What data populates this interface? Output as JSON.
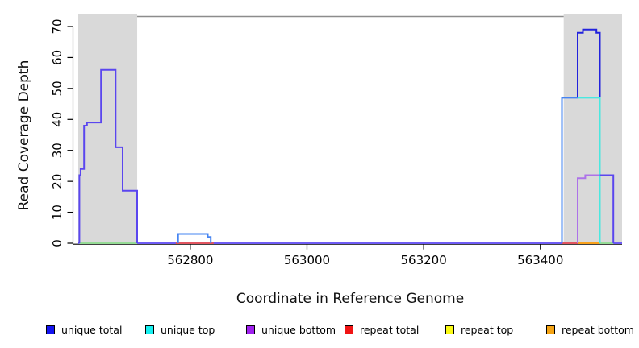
{
  "chart_data": {
    "type": "line",
    "subtype": "step-coverage",
    "title": "",
    "xlabel": "Coordinate in Reference Genome",
    "ylabel": "Read Coverage Depth",
    "xlim": [
      562608,
      563540
    ],
    "ylim": [
      0,
      74
    ],
    "x_ticks": [
      562800,
      563000,
      563200,
      563400
    ],
    "y_ticks": [
      0,
      10,
      20,
      30,
      40,
      50,
      60,
      70
    ],
    "grid": false,
    "background": "#ffffff",
    "region_fill": "#d9d9d9",
    "top_border": {
      "start": 562709,
      "end": 563440,
      "color": "#8c8c8c"
    },
    "highlight_regions": [
      {
        "name": "left-repeat-region",
        "start": 562608,
        "end": 562709
      },
      {
        "name": "right-repeat-region",
        "start": 563440,
        "end": 563540
      }
    ],
    "series": [
      {
        "name": "baseline-zero",
        "color": "#6f5cf5",
        "points": [
          [
            562608,
            0
          ],
          [
            563540,
            0
          ]
        ]
      },
      {
        "name": "zero-green-left",
        "color": "#95db95",
        "points": [
          [
            562610,
            0
          ],
          [
            562709,
            0
          ]
        ]
      },
      {
        "name": "zero-red-mid",
        "color": "#e25560",
        "points": [
          [
            562775,
            0
          ],
          [
            562840,
            0
          ]
        ]
      },
      {
        "name": "zero-red-right",
        "color": "#e25560",
        "points": [
          [
            563437,
            0
          ],
          [
            563464,
            0
          ]
        ]
      },
      {
        "name": "zero-orange-right",
        "color": "#f9a11b",
        "points": [
          [
            563464,
            0
          ],
          [
            563502,
            0
          ]
        ]
      },
      {
        "name": "zero-green-right",
        "color": "#95db95",
        "points": [
          [
            563502,
            0
          ],
          [
            563525,
            0
          ]
        ]
      },
      {
        "name": "unique-bottom-right",
        "color": "#ad72e9",
        "points": [
          [
            563464,
            0
          ],
          [
            563464,
            21
          ],
          [
            563477,
            21
          ],
          [
            563477,
            22
          ],
          [
            563525,
            22
          ]
        ]
      },
      {
        "name": "unique-total-right-peak",
        "color": "#2222dd",
        "points": [
          [
            563464,
            47
          ],
          [
            563464,
            68
          ],
          [
            563473,
            68
          ],
          [
            563473,
            69
          ],
          [
            563496,
            69
          ],
          [
            563496,
            68
          ],
          [
            563502,
            68
          ],
          [
            563502,
            22
          ]
        ]
      },
      {
        "name": "unique-top-right",
        "color": "#49e8e0",
        "points": [
          [
            563464,
            47
          ],
          [
            563502,
            47
          ],
          [
            563502,
            0
          ]
        ]
      },
      {
        "name": "mid-bump",
        "color": "#4584f2",
        "points": [
          [
            562779,
            0
          ],
          [
            562779,
            3
          ],
          [
            562830,
            3
          ],
          [
            562830,
            2
          ],
          [
            562835,
            2
          ],
          [
            562835,
            0
          ]
        ]
      },
      {
        "name": "right-rise",
        "color": "#4584f2",
        "points": [
          [
            563437,
            0
          ],
          [
            563437,
            47
          ],
          [
            563464,
            47
          ]
        ]
      },
      {
        "name": "left-peak",
        "color": "#5a46ef",
        "points": [
          [
            562610,
            0
          ],
          [
            562610,
            22
          ],
          [
            562612,
            22
          ],
          [
            562612,
            24
          ],
          [
            562618,
            24
          ],
          [
            562618,
            38
          ],
          [
            562623,
            38
          ],
          [
            562623,
            39
          ],
          [
            562647,
            39
          ],
          [
            562647,
            56
          ],
          [
            562672,
            56
          ],
          [
            562672,
            31
          ],
          [
            562684,
            31
          ],
          [
            562684,
            17
          ],
          [
            562709,
            17
          ],
          [
            562709,
            0
          ]
        ]
      },
      {
        "name": "right-tail",
        "color": "#5a46ef",
        "points": [
          [
            563502,
            22
          ],
          [
            563525,
            22
          ],
          [
            563525,
            0
          ]
        ]
      }
    ],
    "legend": {
      "position": "bottom",
      "entries": [
        {
          "label": "unique total",
          "color": "#1414f0"
        },
        {
          "label": "unique top",
          "color": "#16f0f0"
        },
        {
          "label": "unique bottom",
          "color": "#a021ef"
        },
        {
          "label": "repeat total",
          "color": "#f01414"
        },
        {
          "label": "repeat top",
          "color": "#fafa14"
        },
        {
          "label": "repeat bottom",
          "color": "#f5a414"
        }
      ]
    }
  }
}
